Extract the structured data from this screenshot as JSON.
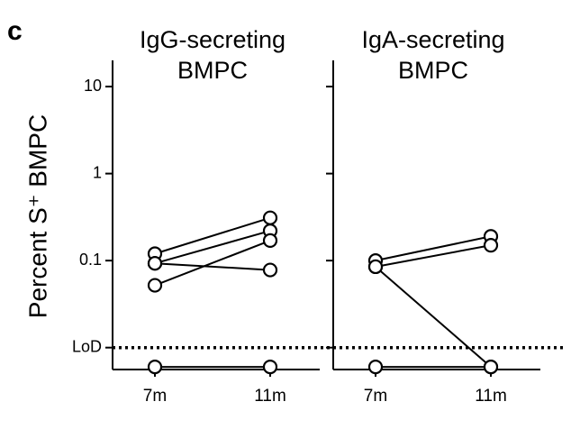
{
  "chart_data": [
    {
      "type": "line",
      "panel_label": "c",
      "title": [
        "IgG-secreting",
        "BMPC"
      ],
      "ylabel": "Percent S⁺ BMPC",
      "categories": [
        "7m",
        "11m"
      ],
      "log_y": true,
      "ylim": [
        0.0056,
        20
      ],
      "yticks": [
        10,
        1,
        0.1,
        {
          "value": 0.01,
          "label": "LoD"
        }
      ],
      "hline": 0.01,
      "color": "#000000",
      "series": [
        {
          "values": [
            0.12,
            0.31
          ]
        },
        {
          "values": [
            0.093,
            0.22
          ]
        },
        {
          "values": [
            0.093,
            0.078
          ]
        },
        {
          "values": [
            0.052,
            0.17
          ]
        },
        {
          "values": [
            0.006,
            0.006
          ]
        }
      ]
    },
    {
      "type": "line",
      "title": [
        "IgA-secreting",
        "BMPC"
      ],
      "categories": [
        "7m",
        "11m"
      ],
      "log_y": true,
      "ylim": [
        0.0056,
        20
      ],
      "yticks": [
        10,
        1,
        0.1,
        0.01
      ],
      "hline": 0.01,
      "color": "#000000",
      "series": [
        {
          "values": [
            0.1,
            0.19
          ]
        },
        {
          "values": [
            0.085,
            0.15
          ]
        },
        {
          "values": [
            0.085,
            0.006
          ]
        },
        {
          "values": [
            0.006,
            0.006
          ]
        }
      ]
    }
  ]
}
